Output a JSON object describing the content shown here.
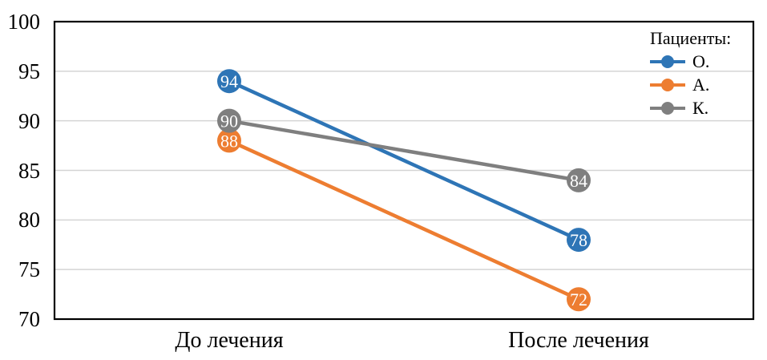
{
  "chart_data": {
    "type": "line",
    "title": "",
    "categories": [
      "До лечения",
      "После лечения"
    ],
    "series": [
      {
        "name": "О.",
        "color": "#2E75B6",
        "values": [
          94,
          78
        ]
      },
      {
        "name": "А.",
        "color": "#ED7D31",
        "values": [
          88,
          72
        ]
      },
      {
        "name": "К.",
        "color": "#7F7F7F",
        "values": [
          90,
          84
        ]
      }
    ],
    "legend_title": "Пациенты:",
    "legend_position": "top-right-inside",
    "ylim": [
      70,
      100
    ],
    "yticks": [
      100,
      95,
      90,
      85,
      80,
      75,
      70
    ],
    "grid": "horizontal",
    "data_labels": true,
    "colors": {
      "gridline": "#D4D4D4",
      "plot_border": "#000000",
      "axis_text": "#000000",
      "data_label_text": "#FFFFFF",
      "background": "#FFFFFF"
    }
  }
}
